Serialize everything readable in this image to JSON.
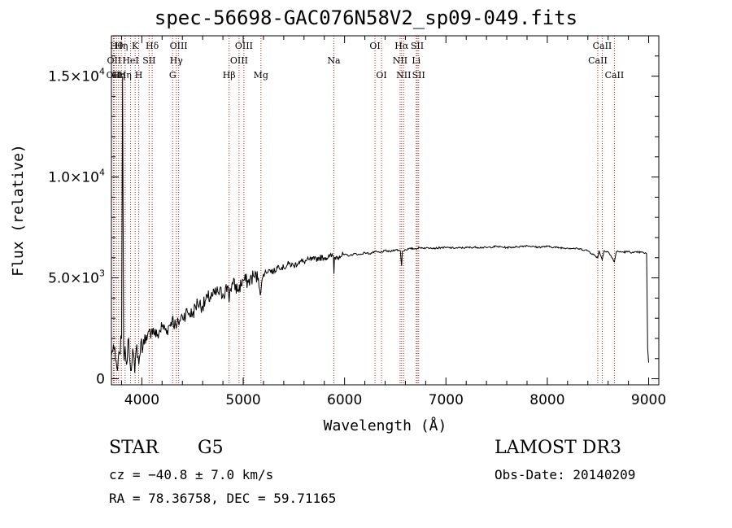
{
  "chart_data": {
    "type": "line",
    "title": "spec-56698-GAC076N58V2_sp09-049.fits",
    "xlabel": "Wavelength (Å)",
    "ylabel": "Flux (relative)",
    "xlim": [
      3700,
      9100
    ],
    "ylim": [
      -300,
      17000
    ],
    "xticks": [
      4000,
      5000,
      6000,
      7000,
      8000,
      9000
    ],
    "xtick_labels": [
      "4000",
      "5000",
      "6000",
      "7000",
      "8000",
      "9000"
    ],
    "yticks": [
      0,
      5000,
      10000,
      15000
    ],
    "ytick_labels": [
      {
        "mant": "0",
        "exp": ""
      },
      {
        "mant": "5.0×10",
        "exp": "3"
      },
      {
        "mant": "1.0×10",
        "exp": "4"
      },
      {
        "mant": "1.5×10",
        "exp": "4"
      }
    ],
    "series": [
      {
        "name": "spectrum",
        "x": [
          3700,
          3720,
          3740,
          3760,
          3780,
          3800,
          3810,
          3820,
          3825,
          3835,
          3850,
          3870,
          3890,
          3910,
          3930,
          3950,
          3970,
          3990,
          4010,
          4030,
          4050,
          4100,
          4150,
          4200,
          4250,
          4300,
          4340,
          4360,
          4400,
          4450,
          4500,
          4550,
          4600,
          4650,
          4700,
          4750,
          4800,
          4850,
          4861,
          4870,
          4900,
          4950,
          5000,
          5050,
          5100,
          5150,
          5175,
          5200,
          5250,
          5300,
          5350,
          5400,
          5450,
          5500,
          5550,
          5600,
          5650,
          5700,
          5750,
          5800,
          5850,
          5890,
          5895,
          5900,
          5950,
          6000,
          6050,
          6100,
          6150,
          6200,
          6250,
          6300,
          6350,
          6400,
          6450,
          6500,
          6550,
          6563,
          6570,
          6600,
          6650,
          6700,
          6750,
          6800,
          6850,
          6900,
          6950,
          7000,
          7100,
          7200,
          7300,
          7400,
          7500,
          7600,
          7700,
          7800,
          7900,
          8000,
          8100,
          8200,
          8300,
          8400,
          8498,
          8510,
          8542,
          8560,
          8600,
          8662,
          8680,
          8700,
          8750,
          8800,
          8850,
          8900,
          8950,
          8980,
          8990,
          9000
        ],
        "y": [
          1100,
          1700,
          900,
          400,
          1300,
          2000,
          15000,
          1500,
          900,
          1600,
          700,
          2000,
          400,
          1500,
          300,
          1700,
          700,
          1800,
          1500,
          2200,
          1900,
          2500,
          2100,
          2600,
          2400,
          3000,
          2500,
          2800,
          3100,
          3300,
          3200,
          3800,
          3600,
          4000,
          4100,
          4300,
          4200,
          4600,
          3800,
          4500,
          4700,
          4400,
          4900,
          4800,
          5100,
          5000,
          4300,
          5200,
          5400,
          5300,
          5600,
          5500,
          5700,
          5600,
          5800,
          5800,
          5900,
          5900,
          6000,
          6000,
          6050,
          6100,
          5200,
          6000,
          6100,
          6150,
          6100,
          6200,
          6150,
          6250,
          6200,
          6300,
          6250,
          6350,
          6300,
          6400,
          6350,
          5600,
          6300,
          6400,
          6450,
          6450,
          6500,
          6480,
          6500,
          6470,
          6500,
          6500,
          6480,
          6500,
          6520,
          6500,
          6560,
          6500,
          6540,
          6600,
          6520,
          6560,
          6500,
          6480,
          6450,
          6350,
          6000,
          6350,
          5900,
          6350,
          6300,
          5800,
          6300,
          6300,
          6280,
          6300,
          6250,
          6280,
          6250,
          6200,
          1500,
          800
        ]
      }
    ],
    "lines": [
      {
        "x": 3720,
        "label": "OII",
        "row": 2
      },
      {
        "x": 3727,
        "label": "OII",
        "row": 1
      },
      {
        "x": 3750,
        "label": "Hθ",
        "row": 0
      },
      {
        "x": 3771,
        "label": "Hη",
        "row": 2
      },
      {
        "x": 3798,
        "label": "Hη",
        "row": 0
      },
      {
        "x": 3835,
        "label": "Hη",
        "row": 2
      },
      {
        "x": 3889,
        "label": "HeI",
        "row": 1
      },
      {
        "x": 3934,
        "label": "K",
        "row": 0
      },
      {
        "x": 3969,
        "label": "H",
        "row": 2
      },
      {
        "x": 4072,
        "label": "SII",
        "row": 1
      },
      {
        "x": 4102,
        "label": "Hδ",
        "row": 0
      },
      {
        "x": 4304,
        "label": "G",
        "row": 2
      },
      {
        "x": 4340,
        "label": "Hγ",
        "row": 1
      },
      {
        "x": 4363,
        "label": "OIII",
        "row": 0
      },
      {
        "x": 4861,
        "label": "Hβ",
        "row": 2
      },
      {
        "x": 4959,
        "label": "OIII",
        "row": 1
      },
      {
        "x": 5007,
        "label": "OIII",
        "row": 0
      },
      {
        "x": 5175,
        "label": "Mg",
        "row": 2
      },
      {
        "x": 5894,
        "label": "Na",
        "row": 1
      },
      {
        "x": 6300,
        "label": "OI",
        "row": 0
      },
      {
        "x": 6364,
        "label": "OI",
        "row": 2
      },
      {
        "x": 6548,
        "label": "NII",
        "row": 1
      },
      {
        "x": 6563,
        "label": "Hα",
        "row": 0
      },
      {
        "x": 6583,
        "label": "NII",
        "row": 2
      },
      {
        "x": 6707,
        "label": "Li",
        "row": 1
      },
      {
        "x": 6717,
        "label": "SII",
        "row": 0
      },
      {
        "x": 6731,
        "label": "SII",
        "row": 2
      },
      {
        "x": 8498,
        "label": "CaII",
        "row": 1
      },
      {
        "x": 8542,
        "label": "CaII",
        "row": 0
      },
      {
        "x": 8662,
        "label": "CaII",
        "row": 2
      }
    ],
    "grid": false,
    "line_color": "#b22222"
  },
  "info": {
    "object_class": "STAR",
    "subclass": "G5",
    "survey": "LAMOST DR3",
    "cz": "cz = −40.8 ± 7.0 km/s",
    "coords": "RA =  78.36758, DEC =  59.71165",
    "obs_date": "Obs-Date: 20140209"
  }
}
